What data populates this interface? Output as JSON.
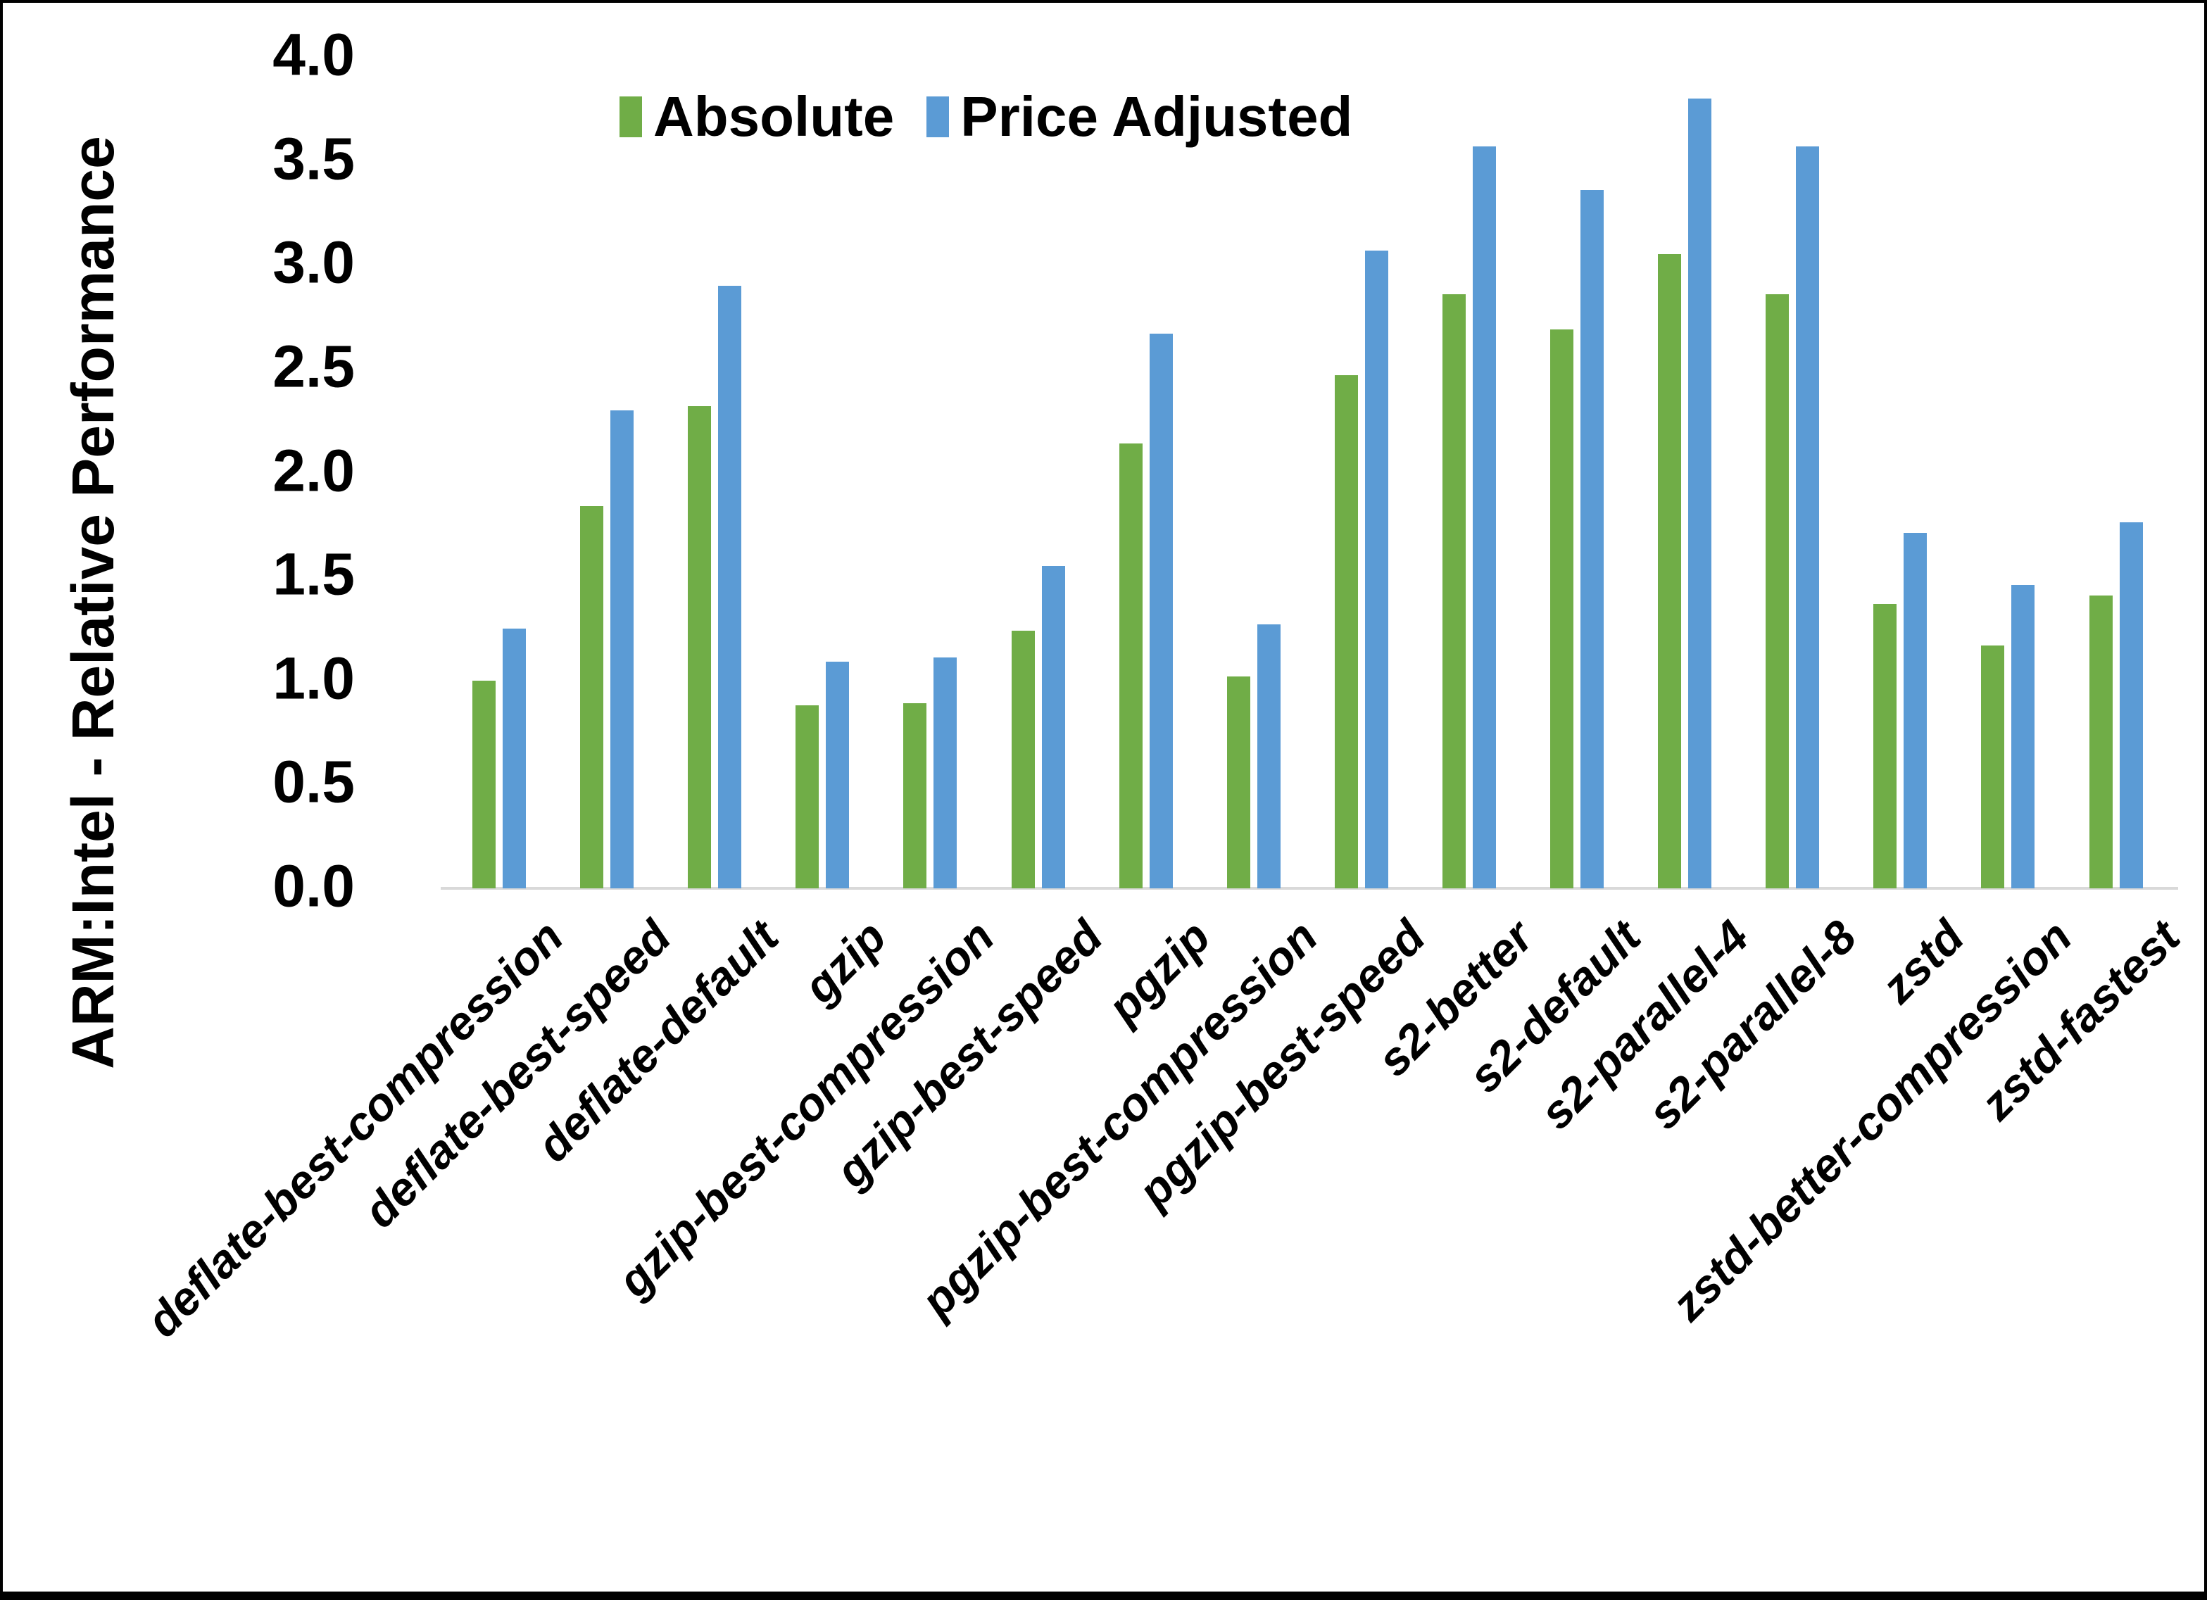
{
  "chart_data": {
    "type": "bar",
    "title": "",
    "xlabel": "",
    "ylabel": "ARM:Intel - Relative Performance",
    "ylim": [
      0.0,
      4.0
    ],
    "ytick_step": 0.5,
    "yticks": [
      "0.0",
      "0.5",
      "1.0",
      "1.5",
      "2.0",
      "2.5",
      "3.0",
      "3.5",
      "4.0"
    ],
    "grid": false,
    "legend_position": "top-center",
    "categories": [
      "deflate-best-compression",
      "deflate-best-speed",
      "deflate-default",
      "gzip",
      "gzip-best-compression",
      "gzip-best-speed",
      "pgzip",
      "pgzip-best-compression",
      "pgzip-best-speed",
      "s2-better",
      "s2-default",
      "s2-parallel-4",
      "s2-parallel-8",
      "zstd",
      "zstd-better-compression",
      "zstd-fastest"
    ],
    "series": [
      {
        "name": "Absolute",
        "color": "#70AD47",
        "values": [
          1.0,
          1.84,
          2.32,
          0.88,
          0.89,
          1.24,
          2.14,
          1.02,
          2.47,
          2.86,
          2.69,
          3.05,
          2.86,
          1.37,
          1.17,
          1.41
        ]
      },
      {
        "name": "Price Adjusted",
        "color": "#5B9BD5",
        "values": [
          1.25,
          2.3,
          2.9,
          1.09,
          1.11,
          1.55,
          2.67,
          1.27,
          3.07,
          3.57,
          3.36,
          3.8,
          3.57,
          1.71,
          1.46,
          1.76
        ]
      }
    ]
  },
  "colors": {
    "background": "#FFFFFF",
    "axis_line": "#D9D9D9",
    "text": "#000000",
    "frame": "#000000"
  }
}
